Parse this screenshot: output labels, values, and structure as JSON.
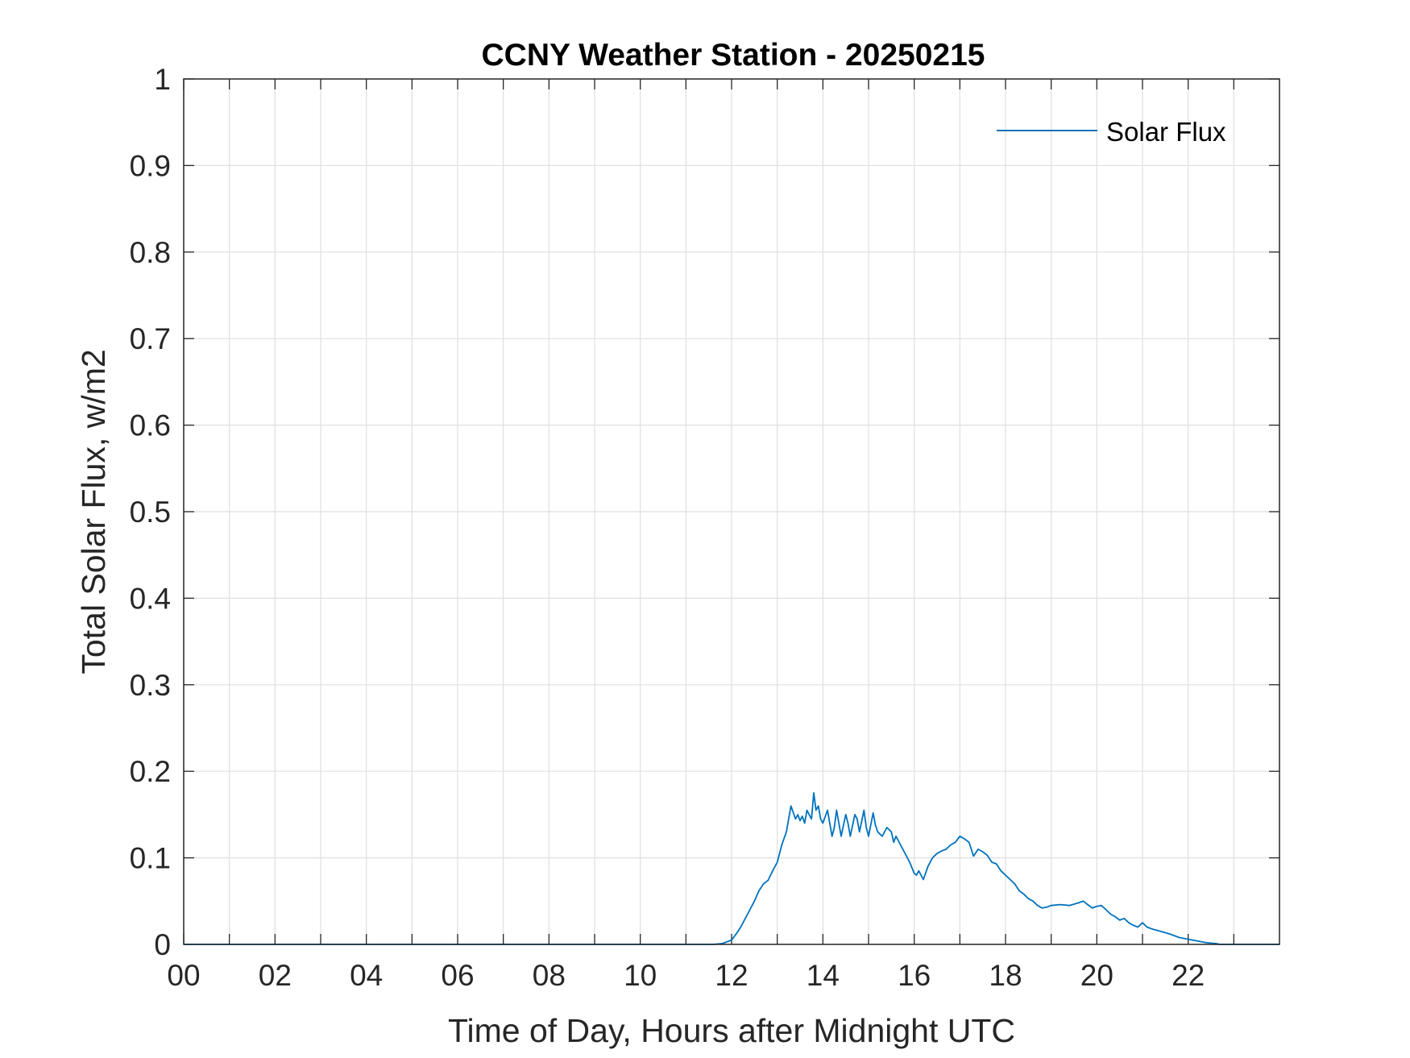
{
  "chart_data": {
    "type": "line",
    "title": "CCNY Weather Station - 20250215",
    "xlabel": "Time of Day, Hours after Midnight UTC",
    "ylabel": "Total Solar Flux, w/m2",
    "xlim": [
      0,
      24
    ],
    "ylim": [
      0,
      1
    ],
    "grid": true,
    "legend_position": "top-right",
    "x_ticks": [
      {
        "value": 0,
        "label": "00"
      },
      {
        "value": 2,
        "label": "02"
      },
      {
        "value": 4,
        "label": "04"
      },
      {
        "value": 6,
        "label": "06"
      },
      {
        "value": 8,
        "label": "08"
      },
      {
        "value": 10,
        "label": "10"
      },
      {
        "value": 12,
        "label": "12"
      },
      {
        "value": 14,
        "label": "14"
      },
      {
        "value": 16,
        "label": "16"
      },
      {
        "value": 18,
        "label": "18"
      },
      {
        "value": 20,
        "label": "20"
      },
      {
        "value": 22,
        "label": "22"
      }
    ],
    "x_minor_grid": [
      1,
      3,
      5,
      7,
      9,
      11,
      13,
      15,
      17,
      19,
      21,
      23
    ],
    "y_ticks": [
      {
        "value": 0,
        "label": "0"
      },
      {
        "value": 0.1,
        "label": "0.1"
      },
      {
        "value": 0.2,
        "label": "0.2"
      },
      {
        "value": 0.3,
        "label": "0.3"
      },
      {
        "value": 0.4,
        "label": "0.4"
      },
      {
        "value": 0.5,
        "label": "0.5"
      },
      {
        "value": 0.6,
        "label": "0.6"
      },
      {
        "value": 0.7,
        "label": "0.7"
      },
      {
        "value": 0.8,
        "label": "0.8"
      },
      {
        "value": 0.9,
        "label": "0.9"
      },
      {
        "value": 1,
        "label": "1"
      }
    ],
    "series": [
      {
        "name": "Solar Flux",
        "color": "#0072bd",
        "x": [
          0,
          11.6,
          11.8,
          12.0,
          12.1,
          12.2,
          12.3,
          12.4,
          12.5,
          12.6,
          12.7,
          12.8,
          12.9,
          13.0,
          13.1,
          13.2,
          13.3,
          13.4,
          13.45,
          13.5,
          13.55,
          13.6,
          13.65,
          13.7,
          13.75,
          13.8,
          13.85,
          13.9,
          13.95,
          14.0,
          14.1,
          14.2,
          14.25,
          14.3,
          14.4,
          14.5,
          14.55,
          14.6,
          14.7,
          14.75,
          14.8,
          14.9,
          14.95,
          15.0,
          15.1,
          15.15,
          15.2,
          15.3,
          15.4,
          15.5,
          15.55,
          15.6,
          15.7,
          15.8,
          15.9,
          16.0,
          16.05,
          16.1,
          16.2,
          16.3,
          16.4,
          16.5,
          16.6,
          16.7,
          16.8,
          16.9,
          17.0,
          17.1,
          17.2,
          17.3,
          17.4,
          17.5,
          17.6,
          17.7,
          17.8,
          17.9,
          18.0,
          18.1,
          18.2,
          18.3,
          18.4,
          18.5,
          18.6,
          18.7,
          18.8,
          18.9,
          19.0,
          19.2,
          19.4,
          19.6,
          19.7,
          19.8,
          19.9,
          20.0,
          20.1,
          20.2,
          20.3,
          20.4,
          20.5,
          20.6,
          20.7,
          20.8,
          20.9,
          21.0,
          21.1,
          21.2,
          21.4,
          21.6,
          21.8,
          22.0,
          22.2,
          22.4,
          22.6,
          22.7,
          24.0
        ],
        "y": [
          0,
          0,
          0.001,
          0.005,
          0.012,
          0.02,
          0.03,
          0.04,
          0.05,
          0.062,
          0.07,
          0.074,
          0.085,
          0.095,
          0.115,
          0.13,
          0.16,
          0.145,
          0.15,
          0.143,
          0.148,
          0.14,
          0.155,
          0.15,
          0.145,
          0.175,
          0.155,
          0.16,
          0.145,
          0.14,
          0.155,
          0.125,
          0.135,
          0.155,
          0.125,
          0.15,
          0.14,
          0.125,
          0.15,
          0.145,
          0.13,
          0.155,
          0.135,
          0.125,
          0.152,
          0.138,
          0.13,
          0.125,
          0.135,
          0.13,
          0.118,
          0.125,
          0.115,
          0.105,
          0.095,
          0.082,
          0.08,
          0.085,
          0.075,
          0.09,
          0.1,
          0.105,
          0.108,
          0.11,
          0.115,
          0.118,
          0.125,
          0.122,
          0.118,
          0.102,
          0.11,
          0.107,
          0.103,
          0.095,
          0.093,
          0.085,
          0.08,
          0.075,
          0.07,
          0.062,
          0.058,
          0.053,
          0.05,
          0.045,
          0.042,
          0.043,
          0.045,
          0.046,
          0.045,
          0.048,
          0.05,
          0.046,
          0.042,
          0.044,
          0.045,
          0.04,
          0.035,
          0.032,
          0.028,
          0.03,
          0.025,
          0.022,
          0.02,
          0.025,
          0.02,
          0.018,
          0.015,
          0.012,
          0.008,
          0.006,
          0.004,
          0.002,
          0.001,
          0,
          0
        ]
      }
    ]
  }
}
